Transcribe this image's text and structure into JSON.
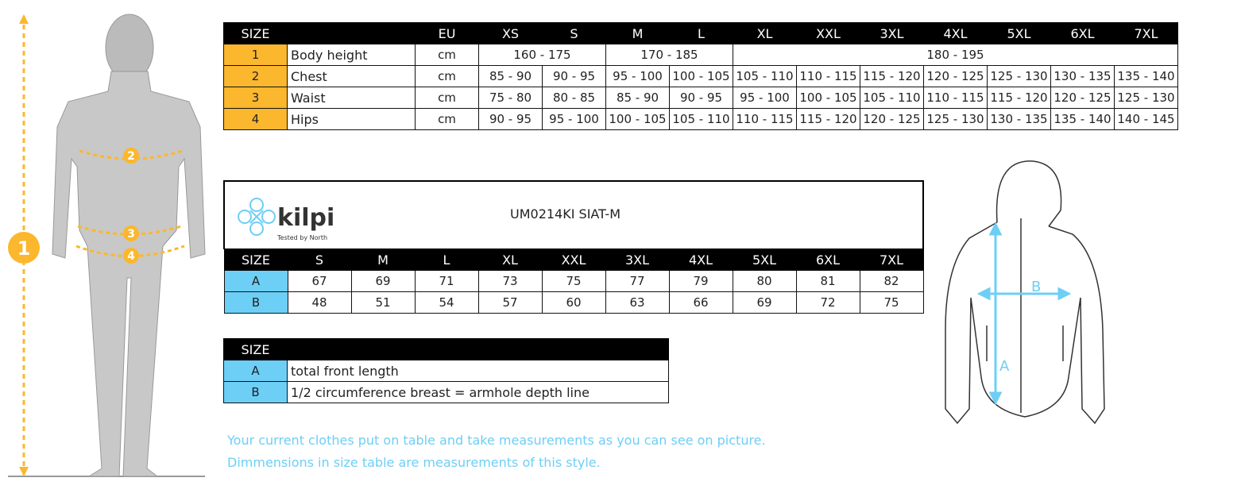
{
  "size_table": {
    "header": [
      "SIZE",
      "",
      "EU",
      "XS",
      "S",
      "M",
      "L",
      "XL",
      "XXL",
      "3XL",
      "4XL",
      "5XL",
      "6XL",
      "7XL"
    ],
    "rows": [
      {
        "num": "1",
        "label": "Body height",
        "unit": "cm",
        "cells": [
          [
            "160 - 175",
            2
          ],
          [
            "170 - 185",
            2
          ],
          [
            "180 - 195",
            7
          ]
        ]
      },
      {
        "num": "2",
        "label": "Chest",
        "unit": "cm",
        "cells": [
          [
            "85 - 90",
            1
          ],
          [
            "90 - 95",
            1
          ],
          [
            "95 - 100",
            1
          ],
          [
            "100 - 105",
            1
          ],
          [
            "105 - 110",
            1
          ],
          [
            "110 - 115",
            1
          ],
          [
            "115 - 120",
            1
          ],
          [
            "120 - 125",
            1
          ],
          [
            "125 - 130",
            1
          ],
          [
            "130 - 135",
            1
          ],
          [
            "135 - 140",
            1
          ]
        ]
      },
      {
        "num": "3",
        "label": "Waist",
        "unit": "cm",
        "cells": [
          [
            "75 - 80",
            1
          ],
          [
            "80 - 85",
            1
          ],
          [
            "85 - 90",
            1
          ],
          [
            "90 - 95",
            1
          ],
          [
            "95 - 100",
            1
          ],
          [
            "100 - 105",
            1
          ],
          [
            "105 - 110",
            1
          ],
          [
            "110 - 115",
            1
          ],
          [
            "115 - 120",
            1
          ],
          [
            "120 - 125",
            1
          ],
          [
            "125 - 130",
            1
          ]
        ]
      },
      {
        "num": "4",
        "label": "Hips",
        "unit": "cm",
        "cells": [
          [
            "90 - 95",
            1
          ],
          [
            "95 - 100",
            1
          ],
          [
            "100 - 105",
            1
          ],
          [
            "105 - 110",
            1
          ],
          [
            "110 - 115",
            1
          ],
          [
            "115 - 120",
            1
          ],
          [
            "120 - 125",
            1
          ],
          [
            "125 - 130",
            1
          ],
          [
            "130 - 135",
            1
          ],
          [
            "135 - 140",
            1
          ],
          [
            "140 - 145",
            1
          ]
        ]
      }
    ]
  },
  "product": {
    "brand": "kilpi",
    "tagline": "Tested by North",
    "code": "UM0214KI SIAT-M",
    "header": [
      "SIZE",
      "S",
      "M",
      "L",
      "XL",
      "XXL",
      "3XL",
      "4XL",
      "5XL",
      "6XL",
      "7XL"
    ],
    "rows": [
      {
        "key": "A",
        "values": [
          "67",
          "69",
          "71",
          "73",
          "75",
          "77",
          "79",
          "80",
          "81",
          "82"
        ]
      },
      {
        "key": "B",
        "values": [
          "48",
          "51",
          "54",
          "57",
          "60",
          "63",
          "66",
          "69",
          "72",
          "75"
        ]
      }
    ]
  },
  "legend": {
    "header": "SIZE",
    "rows": [
      {
        "key": "A",
        "text": "total front length"
      },
      {
        "key": "B",
        "text": "1/2 circumference breast = armhole depth line"
      }
    ]
  },
  "figure_labels": {
    "height": "1",
    "chest": "2",
    "waist": "3",
    "hips": "4",
    "jacket_a": "A",
    "jacket_b": "B"
  },
  "notes": [
    "Your current clothes put on table and take measurements as you can see on picture.",
    "Dimmensions in size table are measurements of this style."
  ],
  "colors": {
    "orange": "#fbb72d",
    "blue": "#6dcff6"
  }
}
